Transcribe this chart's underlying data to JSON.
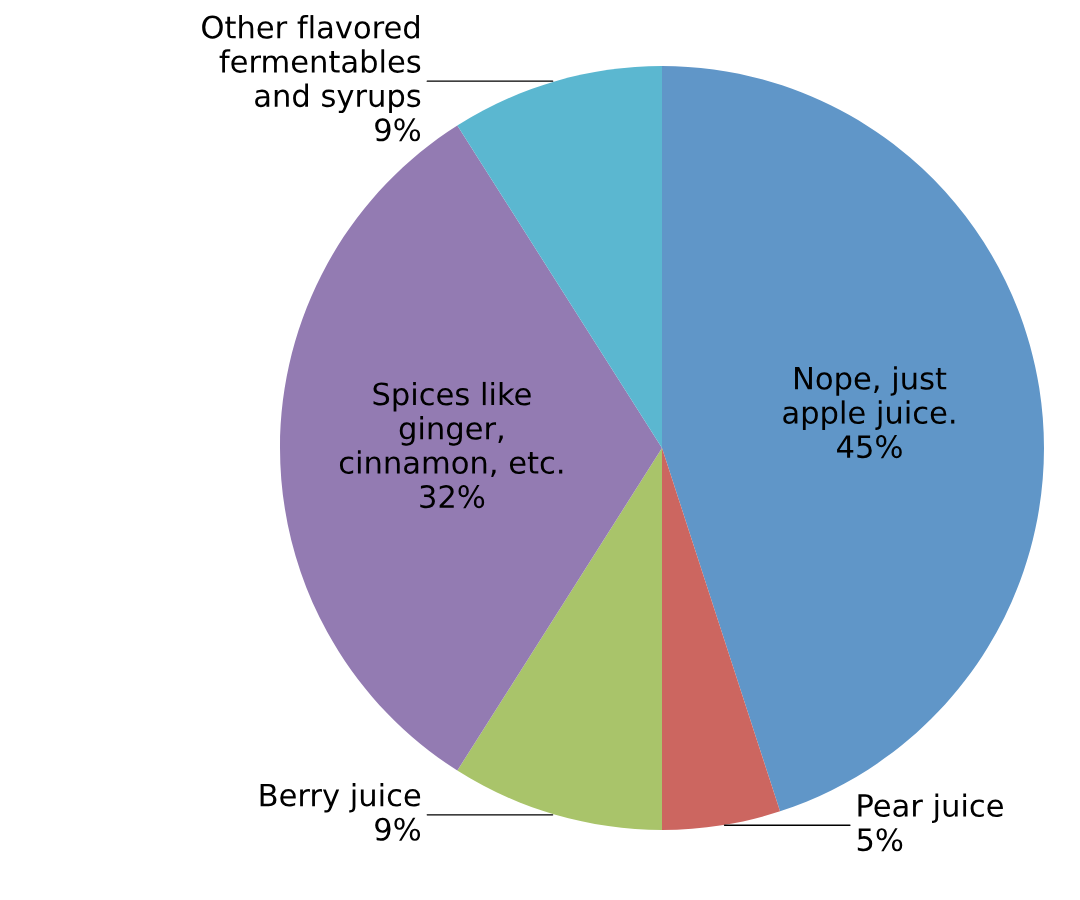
{
  "chart_data": {
    "type": "pie",
    "categories": [
      "Nope, just\napple juice.",
      "Pear juice",
      "Berry juice",
      "Spices like\nginger,\ncinnamon, etc.",
      "Other flavored\nfermentables\nand syrups"
    ],
    "values": [
      45,
      5,
      9,
      32,
      9
    ],
    "value_labels": [
      "45%",
      "5%",
      "9%",
      "32%",
      "9%"
    ],
    "colors": [
      "#6096c8",
      "#cc6660",
      "#a9c46a",
      "#937bb2",
      "#5bb7d0"
    ],
    "legend": false
  }
}
